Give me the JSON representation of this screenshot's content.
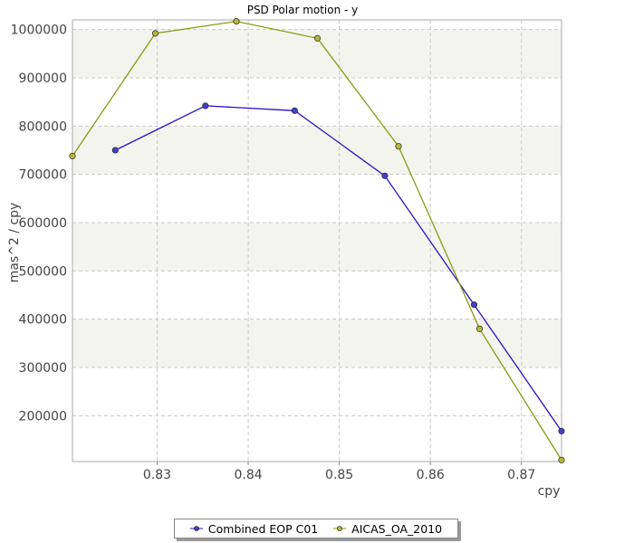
{
  "chart_data": {
    "type": "line",
    "title": "PSD Polar motion - y",
    "xlabel": "cpy",
    "ylabel": "mas^2 / cpy",
    "xlim": [
      0.8207,
      0.8744
    ],
    "ylim": [
      105000,
      1020000
    ],
    "x_ticks": [
      0.83,
      0.84,
      0.85,
      0.86,
      0.87
    ],
    "x_tick_labels": [
      "0.83",
      "0.84",
      "0.85",
      "0.86",
      "0.87"
    ],
    "y_ticks": [
      200000,
      300000,
      400000,
      500000,
      600000,
      700000,
      800000,
      900000,
      1000000
    ],
    "y_tick_labels": [
      "200000",
      "300000",
      "400000",
      "500000",
      "600000",
      "700000",
      "800000",
      "900000",
      "1000000"
    ],
    "grid": true,
    "legend_position": "bottom-center",
    "series": [
      {
        "name": "Combined EOP C01",
        "color": "#2a10c8",
        "marker_color": "#4040d0",
        "x": [
          0.8254,
          0.8353,
          0.8451,
          0.855,
          0.8648,
          0.8744
        ],
        "y": [
          750000,
          842000,
          832000,
          697000,
          430000,
          168000
        ]
      },
      {
        "name": "AICAS_OA_2010",
        "color": "#8a9a10",
        "marker_color": "#b8b838",
        "x": [
          0.8207,
          0.8298,
          0.8387,
          0.8476,
          0.8565,
          0.8654,
          0.8744
        ],
        "y": [
          738000,
          992000,
          1017000,
          982000,
          758000,
          380000,
          108000
        ]
      }
    ]
  }
}
